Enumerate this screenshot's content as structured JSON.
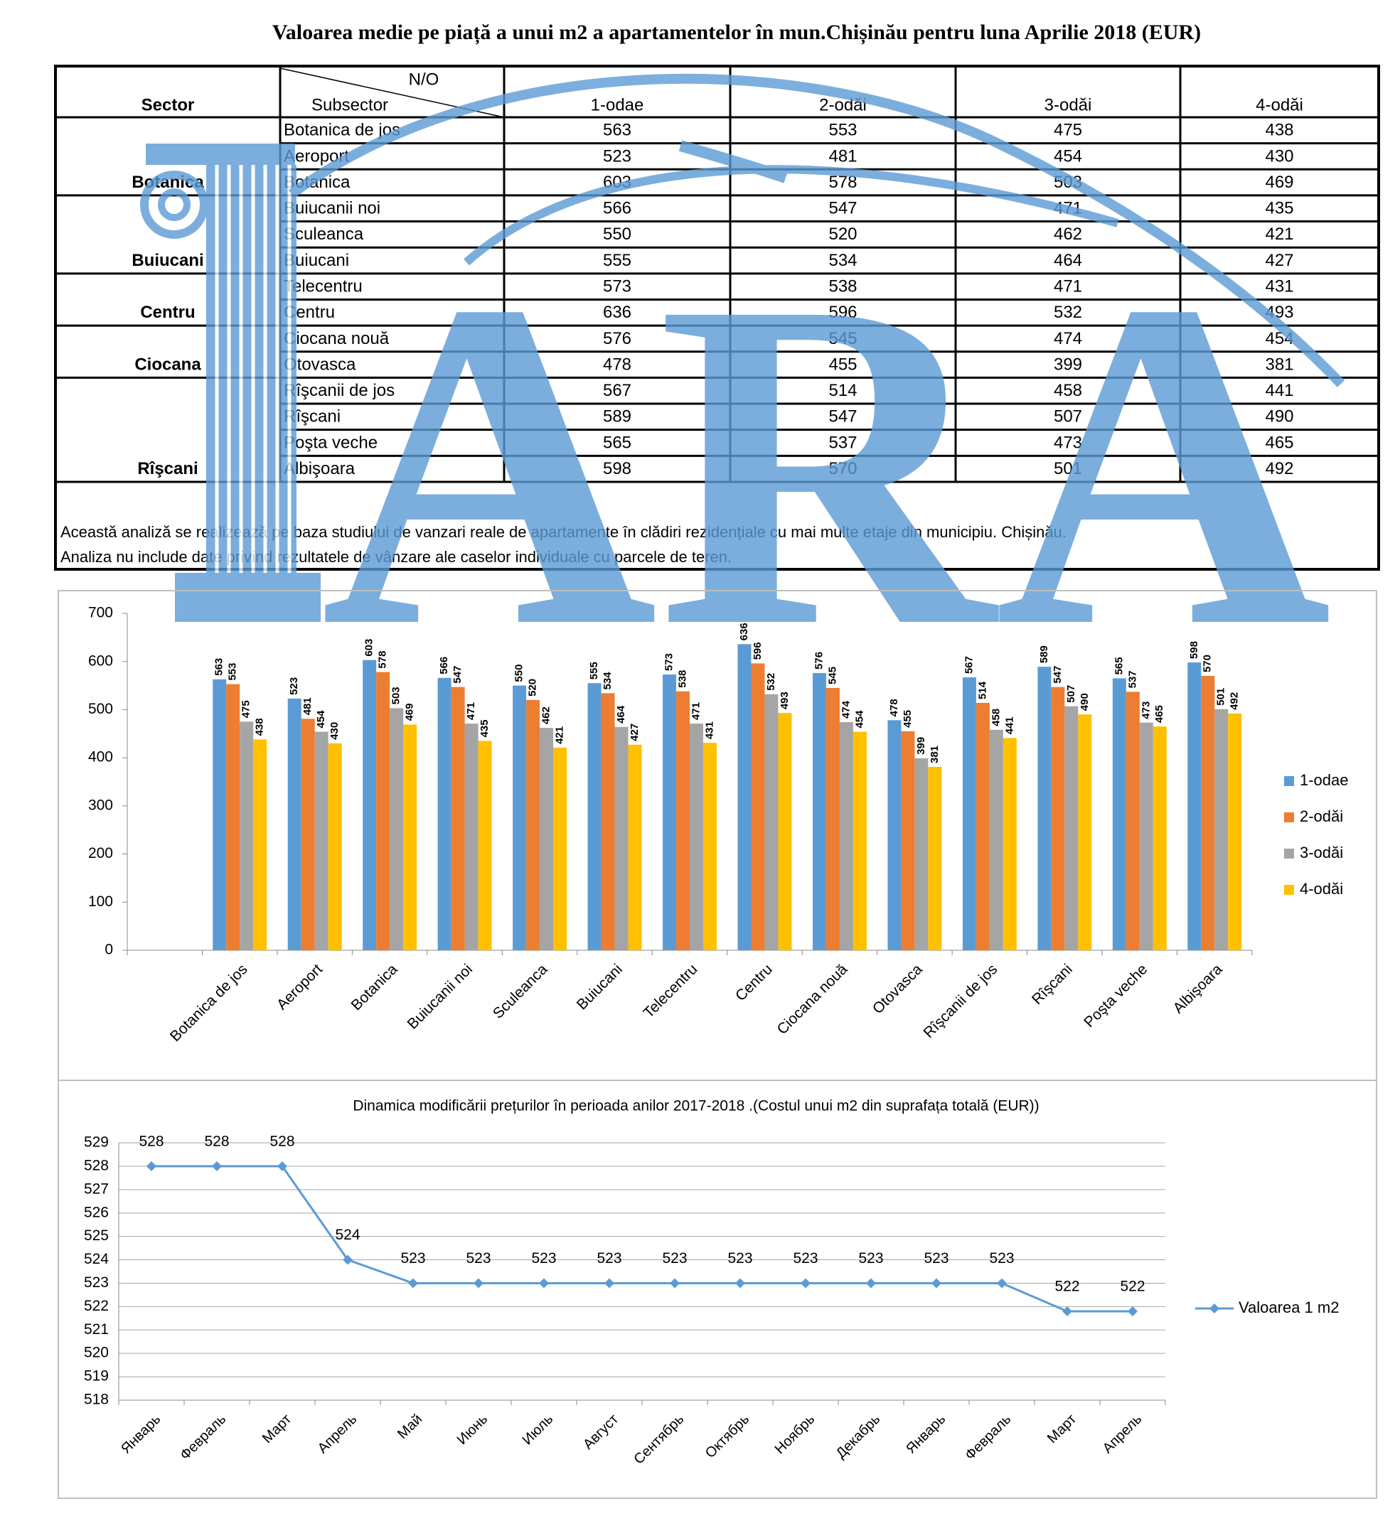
{
  "title": "Valoarea medie pe piață a unui m2 a apartamentelor în mun.Chișinău pentru luna Aprilie 2018 (EUR)",
  "logo": "ARA",
  "table": {
    "sector_header": "Sector",
    "corner_top": "N/O",
    "subsector_header": "Subsector",
    "columns": [
      "1-odae",
      "2-odăi",
      "3-odăi",
      "4-odăi"
    ],
    "groups": [
      {
        "sector": "Botanica",
        "rows": [
          {
            "subsector": "Botanica de jos",
            "values": [
              563,
              553,
              475,
              438
            ]
          },
          {
            "subsector": "Aeroport",
            "values": [
              523,
              481,
              454,
              430
            ]
          },
          {
            "subsector": "Botanica",
            "values": [
              603,
              578,
              503,
              469
            ]
          }
        ]
      },
      {
        "sector": "Buiucani",
        "rows": [
          {
            "subsector": "Buiucanii noi",
            "values": [
              566,
              547,
              471,
              435
            ]
          },
          {
            "subsector": "Sculeanca",
            "values": [
              550,
              520,
              462,
              421
            ]
          },
          {
            "subsector": "Buiucani",
            "values": [
              555,
              534,
              464,
              427
            ]
          }
        ]
      },
      {
        "sector": "Centru",
        "rows": [
          {
            "subsector": "Telecentru",
            "values": [
              573,
              538,
              471,
              431
            ]
          },
          {
            "subsector": "Centru",
            "values": [
              636,
              596,
              532,
              493
            ]
          }
        ]
      },
      {
        "sector": "Ciocana",
        "rows": [
          {
            "subsector": "Ciocana nouă",
            "values": [
              576,
              545,
              474,
              454
            ]
          },
          {
            "subsector": "Otovasca",
            "values": [
              478,
              455,
              399,
              381
            ]
          }
        ]
      },
      {
        "sector": "Rîşcani",
        "rows": [
          {
            "subsector": "Rîşcanii de jos",
            "values": [
              567,
              514,
              458,
              441
            ]
          },
          {
            "subsector": "Rîşcani",
            "values": [
              589,
              547,
              507,
              490
            ]
          },
          {
            "subsector": "Poşta veche",
            "values": [
              565,
              537,
              473,
              465
            ]
          },
          {
            "subsector": "Albişoara",
            "values": [
              598,
              570,
              501,
              492
            ]
          }
        ]
      }
    ],
    "note": [
      "Această analiză se realizează pe baza studiului de vanzari reale de apartamente în clădiri rezidențiale cu mai multe etaje din municipiu. Chișinău.",
      "Analiza nu include date privind rezultatele de vânzare ale caselor individuale cu parcele de teren."
    ]
  },
  "chart_data": [
    {
      "type": "bar",
      "categories": [
        null,
        "Botanica de jos",
        "Aeroport",
        "Botanica",
        "Buiucanii noi",
        "Sculeanca",
        "Buiucani",
        "Telecentru",
        "Centru",
        "Ciocana nouă",
        "Otovasca",
        "Rîşcanii de jos",
        "Rîşcani",
        "Poşta veche",
        "Albişoara"
      ],
      "series": [
        {
          "name": "1-odae",
          "color": "#5b9bd5",
          "values": [
            null,
            563,
            523,
            603,
            566,
            550,
            555,
            573,
            636,
            576,
            478,
            567,
            589,
            565,
            598
          ]
        },
        {
          "name": "2-odăi",
          "color": "#ed7d31",
          "values": [
            null,
            553,
            481,
            578,
            547,
            520,
            534,
            538,
            596,
            545,
            455,
            514,
            547,
            537,
            570
          ]
        },
        {
          "name": "3-odăi",
          "color": "#a5a5a5",
          "values": [
            null,
            475,
            454,
            503,
            471,
            462,
            464,
            471,
            532,
            474,
            399,
            458,
            507,
            473,
            501
          ]
        },
        {
          "name": "4-odăi",
          "color": "#ffc000",
          "values": [
            null,
            438,
            430,
            469,
            435,
            421,
            427,
            431,
            493,
            454,
            381,
            441,
            490,
            465,
            492
          ]
        }
      ],
      "ylim": [
        0,
        700
      ],
      "yticks": [
        0,
        100,
        200,
        300,
        400,
        500,
        600,
        700
      ],
      "grid": false,
      "legend": "right"
    },
    {
      "type": "line",
      "title": "Dinamica modificării prețurilor în perioada anilor 2017-2018 .(Costul unui m2 din suprafața totală (EUR))",
      "categories": [
        "Январь",
        "Февраль",
        "Март",
        "Апрель",
        "Май",
        "Июнь",
        "Июль",
        "Август",
        "Сентябрь",
        "Октябрь",
        "Ноябрь",
        "Декабрь",
        "Январь",
        "Февраль",
        "Март",
        "Апрель"
      ],
      "series": [
        {
          "name": "Valoarea 1 m2",
          "color": "#5b9bd5",
          "values": [
            528,
            528,
            528,
            524,
            523,
            523,
            523,
            523,
            523,
            523,
            523,
            523,
            523,
            523,
            521.8,
            521.8
          ],
          "value_labels": [
            "528",
            "528",
            "528",
            "524",
            "523",
            "523",
            "523",
            "523",
            "523",
            "523",
            "523",
            "523",
            "523",
            "523",
            "522",
            "522"
          ]
        }
      ],
      "ylim": [
        518,
        529
      ],
      "yticks": [
        518,
        519,
        520,
        521,
        522,
        523,
        524,
        525,
        526,
        527,
        528,
        529
      ],
      "grid": true,
      "legend": "right",
      "marker": "diamond"
    }
  ]
}
